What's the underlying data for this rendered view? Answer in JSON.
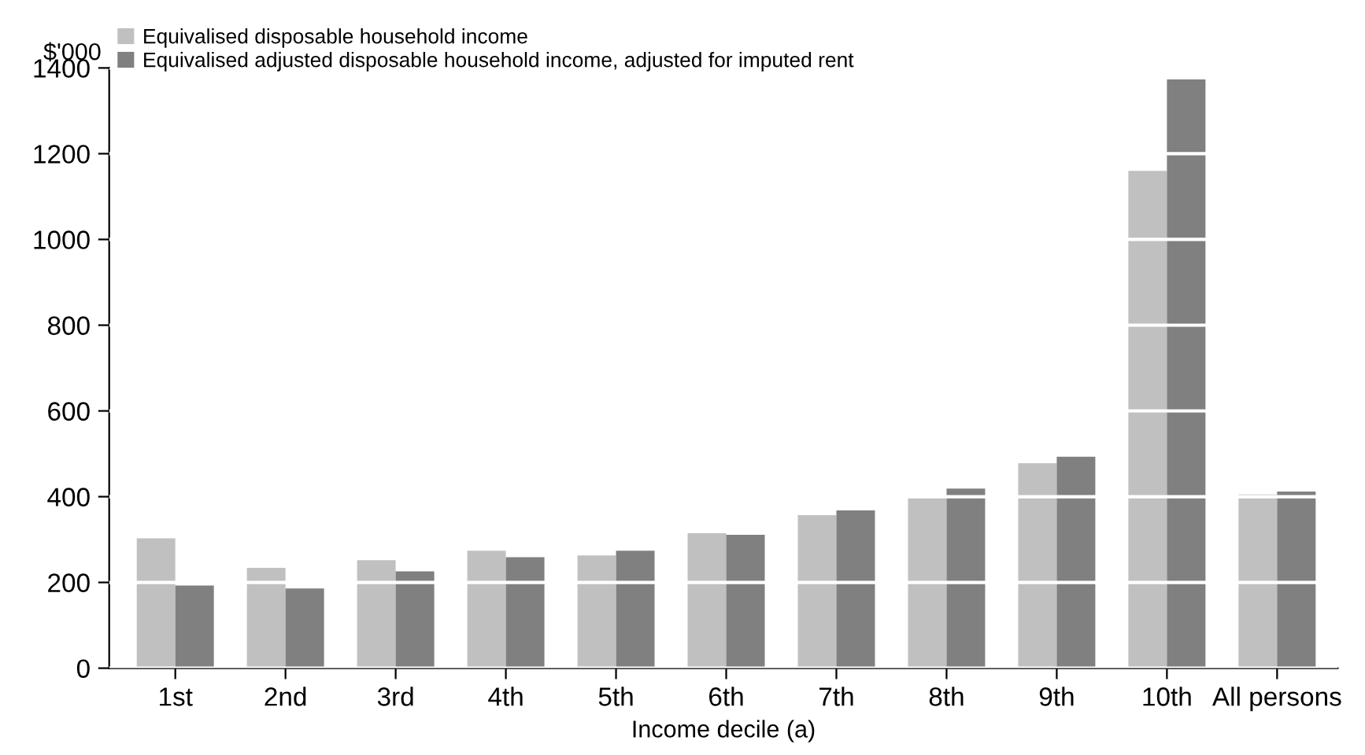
{
  "chart_data": {
    "type": "bar",
    "ylabel": "$'000",
    "xlabel": "Income decile (a)",
    "categories": [
      "1st",
      "2nd",
      "3rd",
      "4th",
      "5th",
      "6th",
      "7th",
      "8th",
      "9th",
      "10th",
      "All persons"
    ],
    "series": [
      {
        "name": "Equivalised disposable household income",
        "color": "#c0c0c0",
        "values": [
          303,
          234,
          252,
          274,
          263,
          315,
          357,
          403,
          478,
          1160,
          405
        ]
      },
      {
        "name": "Equivalised adjusted disposable household income, adjusted for imputed rent",
        "color": "#808080",
        "values": [
          193,
          186,
          226,
          259,
          274,
          311,
          368,
          419,
          493,
          1373,
          412
        ]
      }
    ],
    "ylim": [
      0,
      1400
    ],
    "yticks": [
      0,
      200,
      400,
      600,
      800,
      1000,
      1200,
      1400
    ],
    "grid": "y",
    "legend": "top left"
  }
}
